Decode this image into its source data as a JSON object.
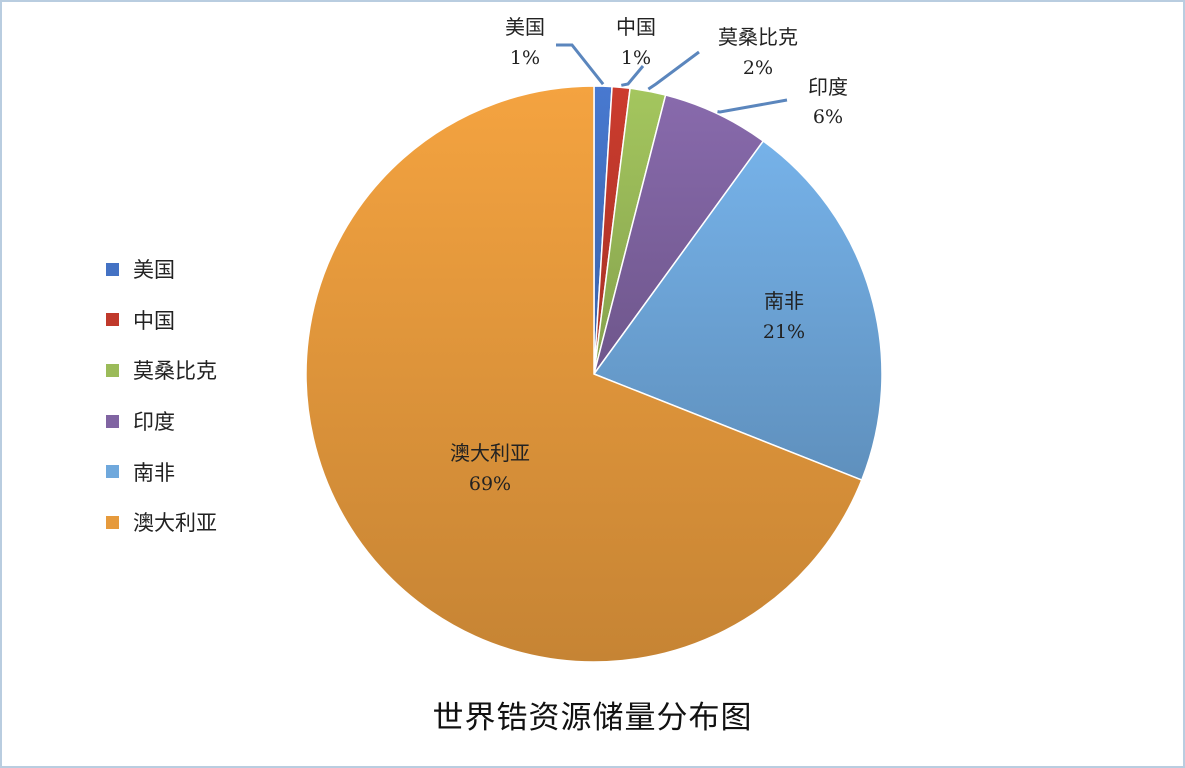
{
  "chart_data": {
    "type": "pie",
    "title": "世界锆资源储量分布图",
    "start_angle_deg": 0,
    "direction": "clockwise",
    "legend_position": "left",
    "slices": [
      {
        "name": "美国",
        "value": 1,
        "label": "1%",
        "color": "#4472c4"
      },
      {
        "name": "中国",
        "value": 1,
        "label": "1%",
        "color": "#c0392b"
      },
      {
        "name": "莫桑比克",
        "value": 2,
        "label": "2%",
        "color": "#9bbb59"
      },
      {
        "name": "印度",
        "value": 6,
        "label": "6%",
        "color": "#8064a2"
      },
      {
        "name": "南非",
        "value": 21,
        "label": "21%",
        "color": "#6fa8dc"
      },
      {
        "name": "澳大利亚",
        "value": 69,
        "label": "69%",
        "color": "#e69a3c"
      }
    ]
  }
}
